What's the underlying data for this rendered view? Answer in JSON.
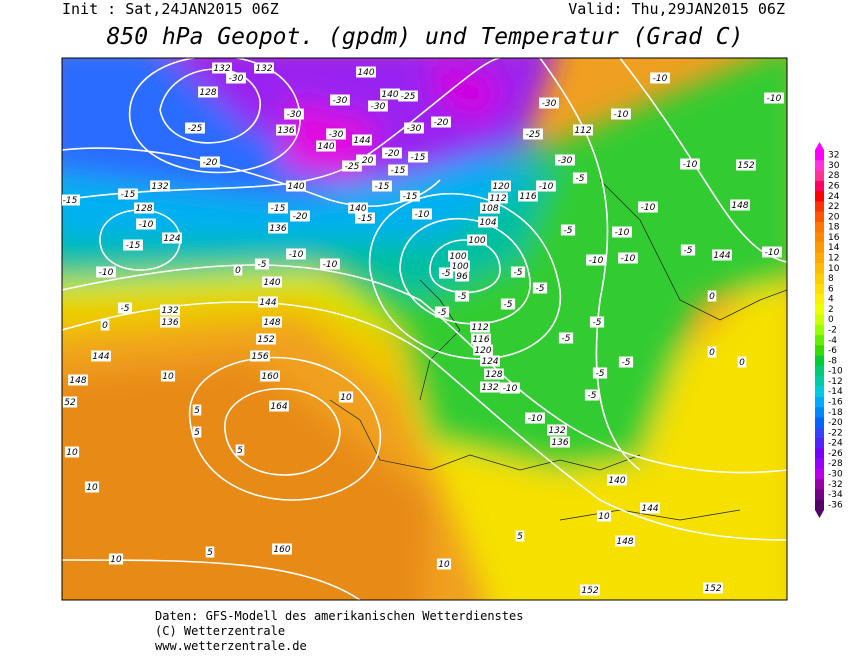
{
  "header": {
    "init": "Init : Sat,24JAN2015 06Z",
    "valid": "Valid: Thu,29JAN2015 06Z",
    "title": "850 hPa Geopot. (gpdm) und Temperatur (Grad C)"
  },
  "map": {
    "labels": [
      132,
      -30,
      132,
      128,
      -25,
      -20,
      -30,
      136,
      -30,
      -30,
      140,
      -25,
      -30,
      -20,
      140,
      144,
      -30,
      140,
      -20,
      -20,
      -15,
      -25,
      -15,
      140,
      -15,
      140,
      -15,
      -15,
      -10,
      132,
      -15,
      128,
      -15,
      -10,
      124,
      -15,
      -10,
      136,
      -15,
      -20,
      -10,
      -10,
      -5,
      0,
      140,
      144,
      148,
      152,
      156,
      160,
      164,
      -5,
      132,
      136,
      0,
      144,
      148,
      10,
      52,
      5,
      10,
      5,
      10,
      5,
      10,
      -30,
      112,
      -25,
      -30,
      -10,
      -10,
      -10,
      -10,
      152,
      148,
      -10,
      -10,
      -10,
      -5,
      144,
      -10,
      -5,
      -10,
      120,
      112,
      116,
      108,
      104,
      100,
      100,
      100,
      96,
      -5,
      -5,
      -5,
      -10,
      -5,
      -5,
      112,
      116,
      120,
      124,
      128,
      132,
      -10,
      -5,
      -5,
      -5,
      -5,
      -5,
      -10,
      132,
      136,
      140,
      144,
      148,
      152,
      152,
      160,
      10,
      5,
      0,
      0,
      0,
      10,
      10,
      5,
      -5,
      -5
    ]
  },
  "colorbar": {
    "levels": [
      32,
      30,
      28,
      26,
      24,
      22,
      20,
      18,
      16,
      14,
      12,
      10,
      8,
      6,
      4,
      2,
      0,
      -2,
      -4,
      -6,
      -8,
      -10,
      -12,
      -14,
      -16,
      -18,
      -20,
      -22,
      -24,
      -26,
      -28,
      -30,
      -32,
      -34,
      -36
    ],
    "colors": [
      "#ff00ff",
      "#ff33dd",
      "#ff3399",
      "#ff0066",
      "#ff0000",
      "#ff3300",
      "#ff5500",
      "#ff7700",
      "#ff8800",
      "#ff9900",
      "#ffaa00",
      "#ffbb00",
      "#ffcc00",
      "#ffdd00",
      "#ffee00",
      "#eeff00",
      "#ccff00",
      "#99ff00",
      "#66ee00",
      "#33dd00",
      "#00cc33",
      "#00cc77",
      "#00ccaa",
      "#00ccdd",
      "#00aaff",
      "#0088ff",
      "#0066ff",
      "#3344ff",
      "#5522ff",
      "#7700ff",
      "#9900ff",
      "#bb00ee",
      "#9900aa",
      "#770088",
      "#550066"
    ]
  },
  "footer": {
    "lines": [
      "Daten: GFS-Modell des amerikanischen Wetterdienstes",
      "(C) Wetterzentrale",
      "www.wetterzentrale.de"
    ]
  }
}
